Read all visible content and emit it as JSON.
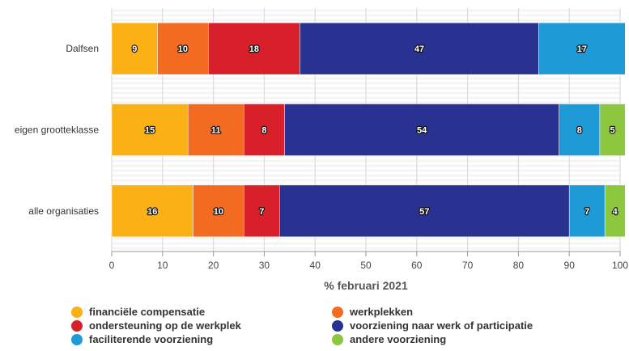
{
  "chart_data": {
    "type": "bar",
    "orientation": "horizontal",
    "stacked": true,
    "categories": [
      "Dalfsen",
      "eigen grootteklasse",
      "alle organisaties"
    ],
    "series": [
      {
        "name": "financiële compensatie",
        "color": "#fbb116",
        "values": [
          9,
          15,
          16
        ]
      },
      {
        "name": "werkplekken",
        "color": "#f36b21",
        "values": [
          10,
          11,
          10
        ]
      },
      {
        "name": "ondersteuning op de werkplek",
        "color": "#d7202a",
        "values": [
          18,
          8,
          7
        ]
      },
      {
        "name": "voorziening naar werk of participatie",
        "color": "#2a3291",
        "values": [
          47,
          54,
          57
        ]
      },
      {
        "name": "faciliterende voorziening",
        "color": "#1e9ad6",
        "values": [
          17,
          8,
          7
        ]
      },
      {
        "name": "andere voorziening",
        "color": "#8dc63f",
        "values": [
          0,
          5,
          4
        ]
      }
    ],
    "xlabel": "% februari 2021",
    "xlim": [
      0,
      100
    ],
    "xticks": [
      0,
      10,
      20,
      30,
      40,
      50,
      60,
      70,
      80,
      90,
      100
    ],
    "grid": true,
    "legend_position": "bottom"
  }
}
